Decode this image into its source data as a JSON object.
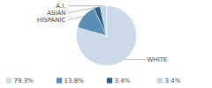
{
  "chart_data": {
    "type": "pie",
    "categories": [
      "WHITE",
      "HISPANIC",
      "ASIAN",
      "A.I."
    ],
    "values": [
      79.3,
      13.8,
      3.4,
      3.4
    ],
    "value_labels": [
      "79.3%",
      "13.8%",
      "3.4%",
      "3.4%"
    ],
    "colors": [
      "#ccd9e8",
      "#5b8db8",
      "#2d5f8a",
      "#c5d5e4"
    ],
    "legend": "bottom"
  }
}
